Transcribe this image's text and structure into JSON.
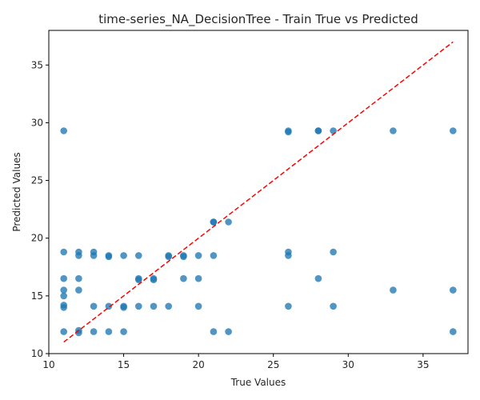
{
  "chart_data": {
    "type": "scatter",
    "title": "time-series_NA_DecisionTree - Train True vs Predicted",
    "xlabel": "True Values",
    "ylabel": "Predicted Values",
    "xlim": [
      10,
      38
    ],
    "ylim": [
      10,
      38
    ],
    "xticks": [
      10,
      15,
      20,
      25,
      30,
      35
    ],
    "yticks": [
      10,
      15,
      20,
      25,
      30,
      35
    ],
    "grid": false,
    "series": [
      {
        "color": "#1f77b4",
        "x": [
          11,
          11,
          11,
          11,
          11,
          11,
          11,
          11,
          12,
          12,
          12,
          12,
          12,
          12,
          13,
          13,
          13,
          13,
          14,
          14,
          14,
          14,
          15,
          15,
          15,
          15,
          16,
          16,
          16,
          16,
          17,
          17,
          17,
          18,
          18,
          18,
          19,
          19,
          19,
          20,
          20,
          20,
          21,
          21,
          21,
          21,
          22,
          22,
          26,
          26,
          26,
          26,
          26,
          28,
          28,
          28,
          29,
          29,
          29,
          33,
          33,
          37,
          37,
          37
        ],
        "y": [
          29.3,
          18.8,
          16.5,
          15.5,
          15.0,
          14.2,
          14.0,
          11.9,
          18.8,
          18.5,
          16.5,
          15.5,
          12.0,
          11.8,
          18.8,
          18.5,
          14.1,
          11.9,
          18.5,
          18.4,
          14.1,
          11.9,
          18.5,
          14.1,
          14.0,
          11.9,
          18.5,
          16.5,
          16.4,
          14.1,
          16.5,
          16.4,
          14.1,
          18.5,
          18.4,
          14.1,
          18.5,
          18.4,
          16.5,
          18.5,
          16.5,
          14.1,
          21.4,
          21.4,
          18.5,
          11.9,
          21.4,
          11.9,
          29.3,
          18.8,
          18.5,
          14.1,
          29.2,
          29.3,
          29.3,
          16.5,
          29.3,
          18.8,
          14.1,
          29.3,
          15.5,
          29.3,
          15.5,
          11.9
        ]
      }
    ],
    "reference_line": {
      "x": [
        11,
        37
      ],
      "y": [
        11,
        37
      ],
      "color": "#ff0000",
      "style": "dashed"
    }
  }
}
